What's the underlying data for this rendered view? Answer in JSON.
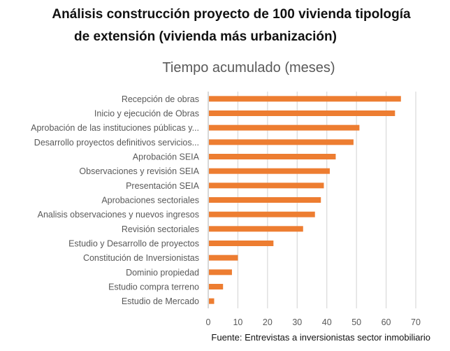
{
  "title_line1": "Análisis construcción proyecto de 100 vivienda tipología",
  "title_line2": "de extensión (vivienda más urbanización)",
  "source": "Fuente: Entrevistas a inversionistas sector inmobiliario",
  "chart_data": {
    "type": "bar",
    "orientation": "horizontal",
    "title": "Tiempo acumulado (meses)",
    "xlabel": "",
    "ylabel": "",
    "xlim": [
      0,
      70
    ],
    "xticks": [
      0,
      10,
      20,
      30,
      40,
      50,
      60,
      70
    ],
    "grid": true,
    "bar_color": "#ED7D31",
    "grid_color": "#D9D9D9",
    "categories": [
      "Recepción de obras",
      "Inicio y ejecución de Obras",
      "Aprobación de las instituciones públicas y...",
      "Desarrollo proyectos definitivos servicios...",
      "Aprobación SEIA",
      "Observaciones y revisión SEIA",
      "Presentación SEIA",
      "Aprobaciones sectoriales",
      "Analisis observaciones y nuevos ingresos",
      "Revisión sectoriales",
      "Estudio y Desarrollo de proyectos",
      "Constitución de Inversionistas",
      "Dominio propiedad",
      "Estudio compra terreno",
      "Estudio de Mercado"
    ],
    "values": [
      65,
      63,
      51,
      49,
      43,
      41,
      39,
      38,
      36,
      32,
      22,
      10,
      8,
      5,
      2
    ]
  }
}
